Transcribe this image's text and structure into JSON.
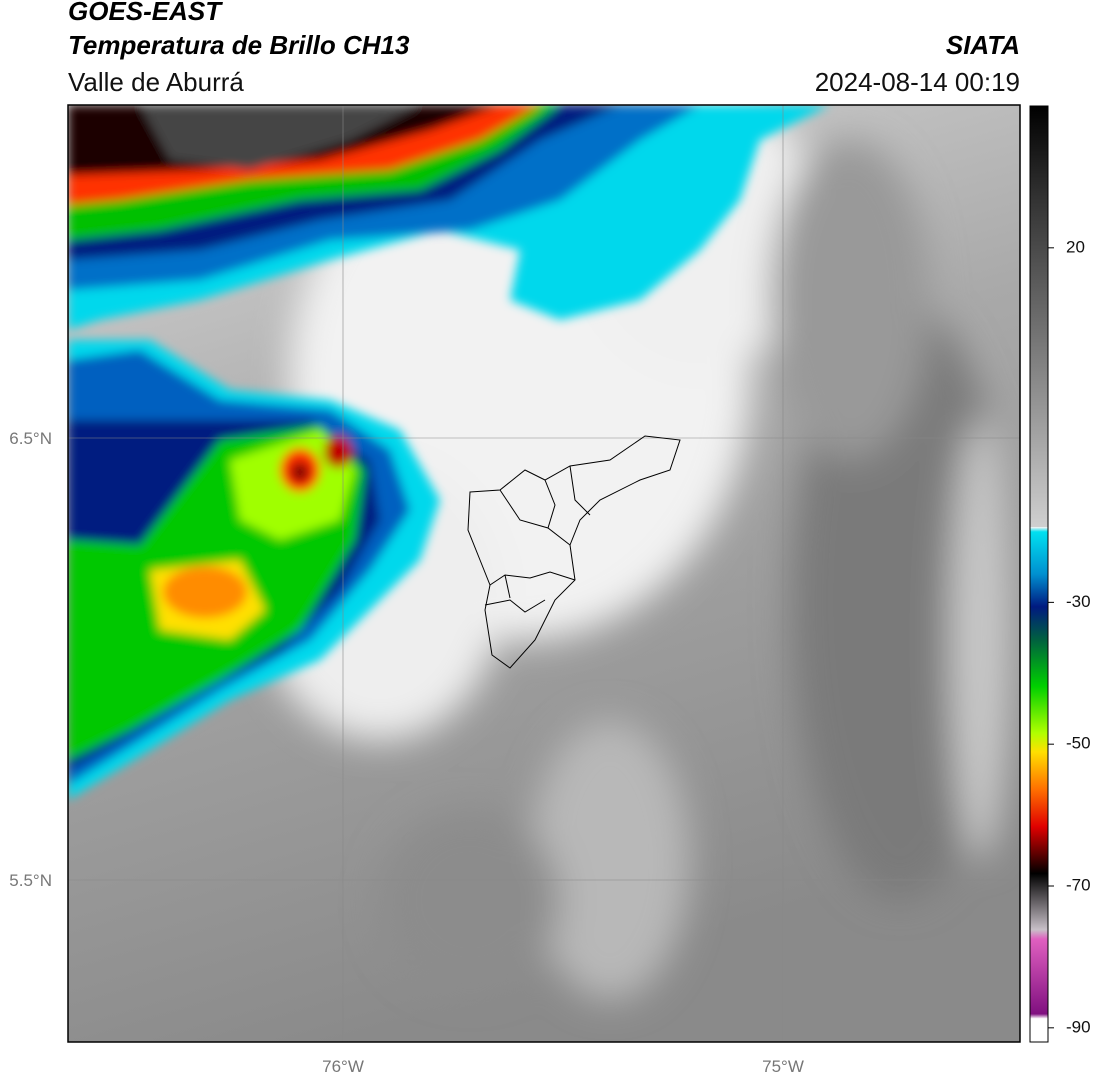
{
  "header": {
    "title": "GOES-EAST",
    "subtitle": "Temperatura de Brillo CH13",
    "region": "Valle de Aburrá",
    "source": "SIATA",
    "timestamp": "2024-08-14 00:19"
  },
  "map": {
    "lat_labels": [
      "6.5°N",
      "5.5°N"
    ],
    "lon_labels": [
      "76°W",
      "75°W"
    ]
  },
  "colorbar": {
    "lim": [
      -92,
      40
    ],
    "ticks": [
      20,
      -30,
      -50,
      -70,
      -90
    ]
  }
}
